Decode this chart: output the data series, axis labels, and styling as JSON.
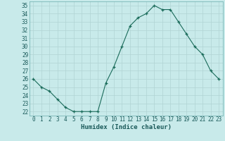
{
  "x": [
    0,
    1,
    2,
    3,
    4,
    5,
    6,
    7,
    8,
    9,
    10,
    11,
    12,
    13,
    14,
    15,
    16,
    17,
    18,
    19,
    20,
    21,
    22,
    23
  ],
  "y": [
    26,
    25,
    24.5,
    23.5,
    22.5,
    22,
    22,
    22,
    22,
    25.5,
    27.5,
    30,
    32.5,
    33.5,
    34,
    35,
    34.5,
    34.5,
    33,
    31.5,
    30,
    29,
    27,
    26
  ],
  "xlabel": "Humidex (Indice chaleur)",
  "xlim": [
    -0.5,
    23.5
  ],
  "ylim": [
    21.5,
    35.5
  ],
  "yticks": [
    22,
    23,
    24,
    25,
    26,
    27,
    28,
    29,
    30,
    31,
    32,
    33,
    34,
    35
  ],
  "xticks": [
    0,
    1,
    2,
    3,
    4,
    5,
    6,
    7,
    8,
    9,
    10,
    11,
    12,
    13,
    14,
    15,
    16,
    17,
    18,
    19,
    20,
    21,
    22,
    23
  ],
  "line_color": "#1a6b5a",
  "marker_color": "#1a6b5a",
  "bg_color": "#c8eaea",
  "grid_color": "#b0d4d4",
  "tick_label_fontsize": 5.5,
  "xlabel_fontsize": 6.5
}
